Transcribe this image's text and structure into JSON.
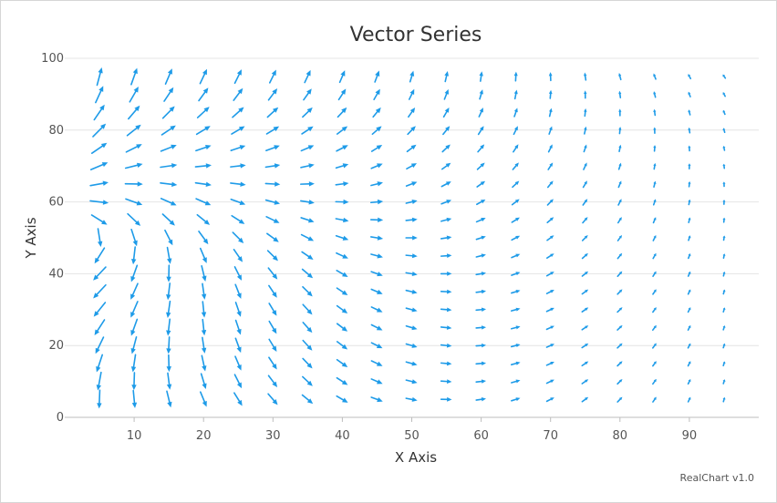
{
  "chart_data": {
    "type": "vector",
    "title": "Vector Series",
    "xlabel": "X Axis",
    "ylabel": "Y Axis",
    "xlim": [
      0,
      100
    ],
    "ylim": [
      0,
      100
    ],
    "x_ticks": [
      10,
      20,
      30,
      40,
      50,
      60,
      70,
      80,
      90
    ],
    "y_ticks": [
      0,
      20,
      40,
      60,
      80,
      100
    ],
    "grid": "horizontal",
    "legend": "none",
    "series_color": "#1e9be8",
    "x_values": [
      5,
      10,
      15,
      20,
      25,
      30,
      35,
      40,
      45,
      50,
      55,
      60,
      65,
      70,
      75,
      80,
      85,
      90,
      95
    ],
    "y_values": [
      5,
      10,
      15,
      20,
      25,
      30,
      35,
      40,
      45,
      50,
      55,
      60,
      65,
      70,
      75,
      80,
      85,
      90,
      95
    ],
    "field": {
      "description_free": true,
      "center_x": 0,
      "center_y": 50,
      "angular_scale": 0.0314,
      "max_length": 1,
      "min_length": 0.2
    }
  },
  "credit": "RealChart v1.0"
}
